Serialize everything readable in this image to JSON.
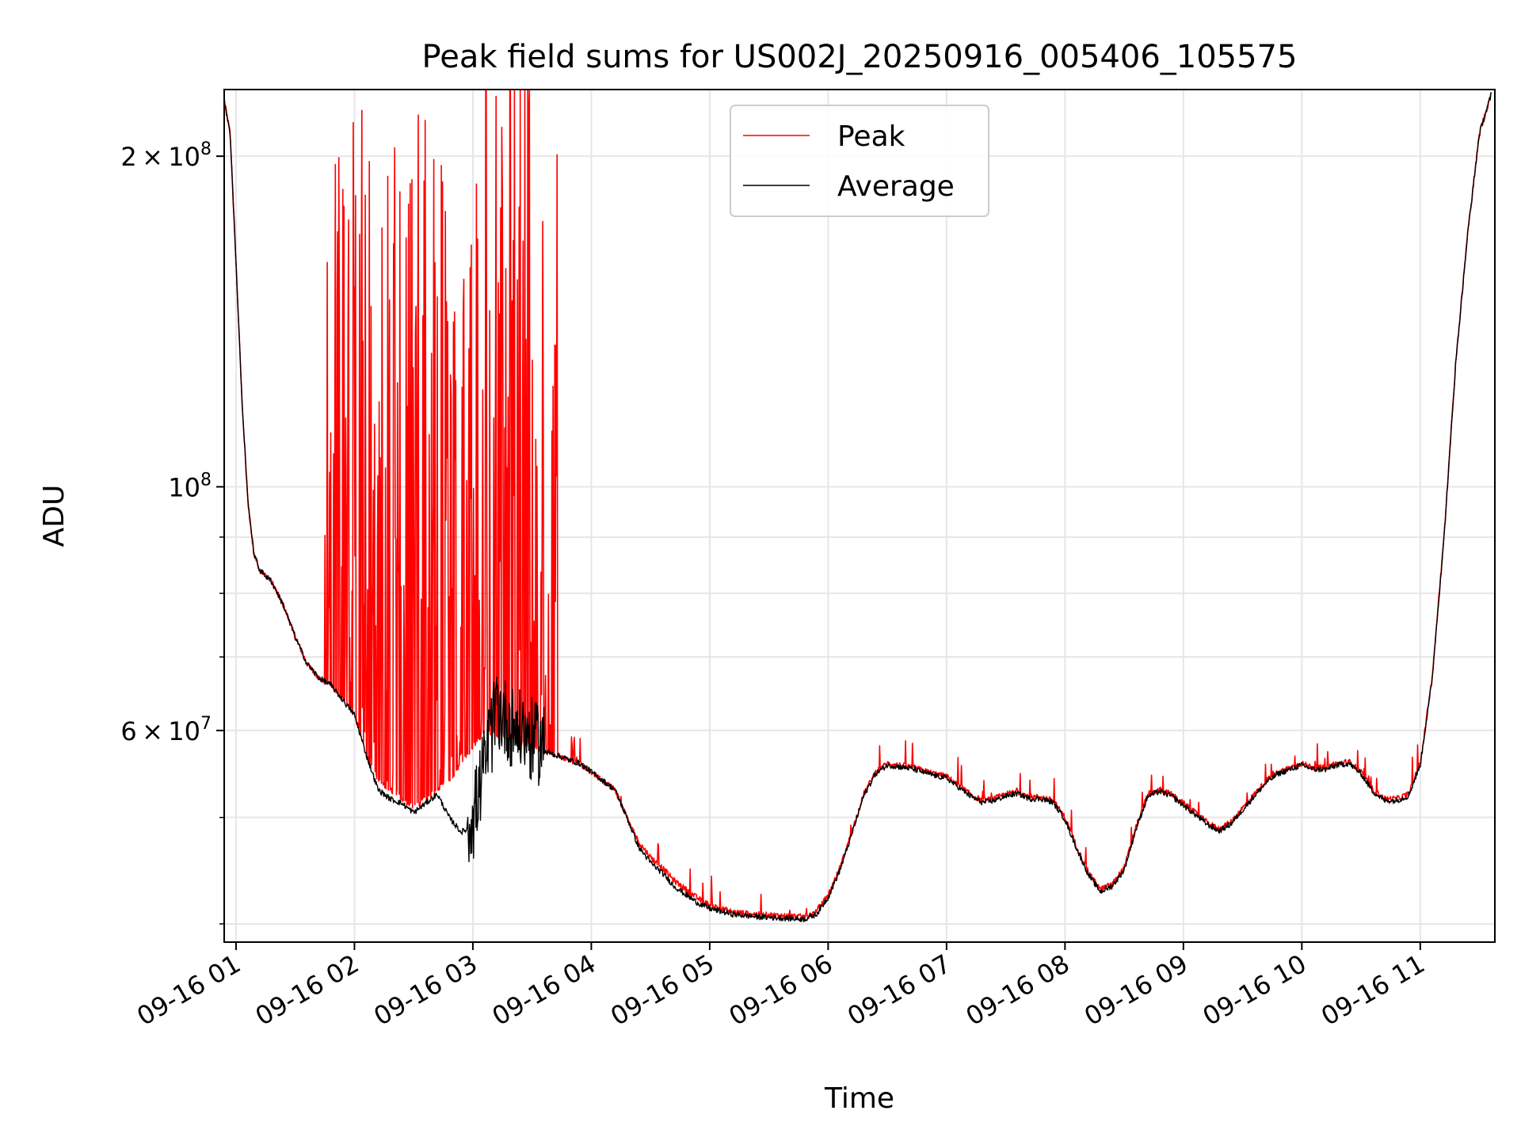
{
  "chart_data": {
    "type": "line",
    "title": "Peak field sums for US002J_20250916_005406_105575",
    "xlabel": "Time",
    "ylabel": "ADU",
    "yscale": "log",
    "xlim_hours": [
      0.9,
      11.63
    ],
    "ylim": [
      38500000,
      230000000
    ],
    "grid": true,
    "legend_position": "upper center",
    "x_ticks": [
      {
        "value": 1,
        "label": "09-16 01"
      },
      {
        "value": 2,
        "label": "09-16 02"
      },
      {
        "value": 3,
        "label": "09-16 03"
      },
      {
        "value": 4,
        "label": "09-16 04"
      },
      {
        "value": 5,
        "label": "09-16 05"
      },
      {
        "value": 6,
        "label": "09-16 06"
      },
      {
        "value": 7,
        "label": "09-16 07"
      },
      {
        "value": 8,
        "label": "09-16 08"
      },
      {
        "value": 9,
        "label": "09-16 09"
      },
      {
        "value": 10,
        "label": "09-16 10"
      },
      {
        "value": 11,
        "label": "09-16 11"
      }
    ],
    "y_major_ticks": [
      {
        "value": 60000000,
        "mantissa": "6",
        "exponent": "7"
      },
      {
        "value": 100000000,
        "mantissa": "",
        "exponent": "8"
      },
      {
        "value": 200000000,
        "mantissa": "2",
        "exponent": "8"
      }
    ],
    "y_minor_ticks": [
      40000000,
      50000000,
      70000000,
      80000000,
      90000000,
      300000000
    ],
    "times_symbol": "×",
    "ten": "10",
    "series": [
      {
        "name": "Peak",
        "color": "#ff0000",
        "baseline_hours": [
          0.9,
          0.95,
          1.0,
          1.05,
          1.1,
          1.15,
          1.2,
          1.3,
          1.4,
          1.5,
          1.6,
          1.7,
          1.8,
          1.9,
          2.0,
          2.1,
          2.2,
          2.3,
          2.4,
          2.5,
          2.6,
          2.7,
          2.8,
          2.9,
          3.0,
          3.1,
          3.2,
          3.3,
          3.4,
          3.5,
          3.6,
          3.7,
          3.8,
          3.9,
          4.0,
          4.1,
          4.2,
          4.3,
          4.4,
          4.5,
          4.6,
          4.7,
          4.8,
          4.9,
          5.0,
          5.2,
          5.4,
          5.6,
          5.8,
          5.9,
          6.0,
          6.1,
          6.2,
          6.3,
          6.4,
          6.5,
          6.6,
          6.7,
          6.8,
          6.9,
          7.0,
          7.1,
          7.2,
          7.3,
          7.4,
          7.5,
          7.6,
          7.7,
          7.8,
          7.9,
          8.0,
          8.1,
          8.2,
          8.3,
          8.4,
          8.5,
          8.6,
          8.7,
          8.8,
          8.9,
          9.0,
          9.1,
          9.2,
          9.3,
          9.4,
          9.5,
          9.6,
          9.7,
          9.8,
          9.9,
          10.0,
          10.1,
          10.2,
          10.3,
          10.4,
          10.5,
          10.6,
          10.7,
          10.8,
          10.9,
          11.0,
          11.1,
          11.2,
          11.3,
          11.4,
          11.5,
          11.6
        ],
        "baseline_values": [
          225000000,
          210000000,
          160000000,
          120000000,
          97000000,
          87000000,
          84000000,
          82000000,
          78000000,
          73000000,
          69000000,
          67000000,
          66000000,
          64000000,
          62000000,
          57000000,
          54000000,
          53000000,
          52000000,
          51000000,
          52000000,
          53000000,
          54000000,
          56000000,
          58000000,
          60000000,
          59500000,
          59000000,
          58500000,
          58000000,
          57500000,
          57000000,
          56500000,
          56000000,
          55000000,
          54000000,
          53000000,
          50000000,
          47500000,
          46000000,
          45000000,
          43800000,
          43000000,
          42200000,
          41600000,
          41000000,
          40800000,
          40700000,
          40600000,
          41000000,
          42500000,
          45000000,
          48500000,
          52500000,
          55000000,
          56000000,
          55800000,
          55600000,
          55200000,
          54800000,
          54500000,
          53500000,
          52500000,
          51800000,
          52000000,
          52500000,
          52800000,
          52200000,
          52200000,
          51800000,
          50000000,
          47000000,
          44500000,
          43000000,
          43500000,
          45000000,
          49000000,
          52500000,
          53000000,
          52500000,
          51500000,
          50500000,
          49500000,
          48800000,
          49500000,
          51000000,
          52500000,
          54000000,
          55000000,
          55500000,
          56000000,
          55500000,
          55500000,
          56000000,
          56200000,
          55000000,
          53000000,
          52000000,
          52000000,
          52500000,
          56000000,
          67000000,
          90000000,
          130000000,
          170000000,
          210000000,
          228000000
        ],
        "spike_band_hours": [
          1.75,
          3.72
        ],
        "spike_max_value": 230000000
      },
      {
        "name": "Average",
        "color": "#000000",
        "baseline_hours": [
          0.9,
          0.95,
          1.0,
          1.05,
          1.1,
          1.15,
          1.2,
          1.3,
          1.4,
          1.5,
          1.6,
          1.7,
          1.8,
          1.9,
          2.0,
          2.1,
          2.2,
          2.3,
          2.4,
          2.5,
          2.6,
          2.7,
          2.8,
          2.9,
          3.0,
          3.1,
          3.2,
          3.3,
          3.4,
          3.5,
          3.6,
          3.7,
          3.8,
          3.9,
          4.0,
          4.1,
          4.2,
          4.3,
          4.4,
          4.5,
          4.6,
          4.7,
          4.8,
          4.9,
          5.0,
          5.2,
          5.4,
          5.6,
          5.8,
          5.9,
          6.0,
          6.1,
          6.2,
          6.3,
          6.4,
          6.5,
          6.6,
          6.7,
          6.8,
          6.9,
          7.0,
          7.1,
          7.2,
          7.3,
          7.4,
          7.5,
          7.6,
          7.7,
          7.8,
          7.9,
          8.0,
          8.1,
          8.2,
          8.3,
          8.4,
          8.5,
          8.6,
          8.7,
          8.8,
          8.9,
          9.0,
          9.1,
          9.2,
          9.3,
          9.4,
          9.5,
          9.6,
          9.7,
          9.8,
          9.9,
          10.0,
          10.1,
          10.2,
          10.3,
          10.4,
          10.5,
          10.6,
          10.7,
          10.8,
          10.9,
          11.0,
          11.1,
          11.2,
          11.3,
          11.4,
          11.5,
          11.6
        ],
        "baseline_values": [
          225000000,
          210000000,
          160000000,
          120000000,
          97000000,
          87000000,
          84000000,
          82000000,
          78000000,
          73000000,
          69000000,
          67000000,
          66000000,
          64000000,
          62000000,
          57000000,
          53000000,
          52000000,
          51500000,
          50500000,
          51500000,
          52500000,
          50000000,
          48500000,
          49000000,
          55000000,
          62000000,
          60000000,
          59000000,
          58000000,
          57500000,
          57000000,
          56500000,
          56000000,
          55000000,
          54000000,
          53000000,
          50000000,
          47000000,
          45500000,
          44500000,
          43300000,
          42500000,
          41800000,
          41300000,
          40800000,
          40600000,
          40500000,
          40400000,
          40800000,
          42300000,
          44800000,
          48300000,
          52300000,
          54800000,
          55800000,
          55600000,
          55400000,
          55000000,
          54600000,
          54300000,
          53300000,
          52300000,
          51600000,
          51800000,
          52300000,
          52600000,
          52000000,
          52000000,
          51600000,
          49800000,
          46800000,
          44300000,
          42800000,
          43300000,
          44800000,
          48800000,
          52300000,
          52800000,
          52300000,
          51300000,
          50300000,
          49300000,
          48600000,
          49300000,
          50800000,
          52300000,
          53800000,
          54800000,
          55300000,
          55800000,
          55300000,
          55300000,
          55800000,
          56000000,
          54800000,
          52800000,
          51800000,
          51800000,
          52300000,
          55800000,
          66800000,
          89800000,
          129800000,
          169800000,
          209800000,
          227800000
        ],
        "noise_band_hours": [
          2.95,
          3.6
        ]
      }
    ]
  }
}
